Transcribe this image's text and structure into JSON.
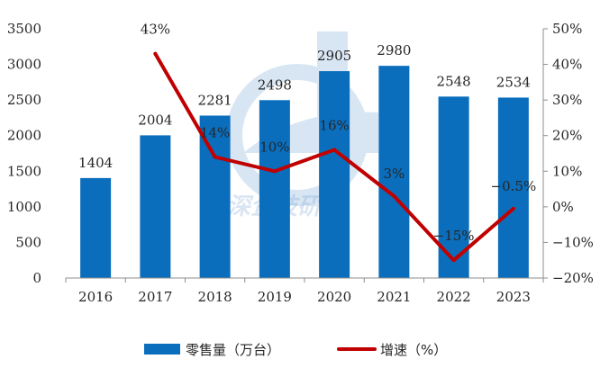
{
  "chart_data": {
    "type": "bar+line",
    "categories": [
      "2016",
      "2017",
      "2018",
      "2019",
      "2020",
      "2021",
      "2022",
      "2023"
    ],
    "series": [
      {
        "name": "零售量（万台）",
        "type": "bar",
        "axis": "left",
        "color": "#0a6ebd",
        "values": [
          1404,
          2004,
          2281,
          2498,
          2905,
          2980,
          2548,
          2534
        ],
        "labels": [
          "1404",
          "2004",
          "2281",
          "2498",
          "2905",
          "2980",
          "2548",
          "2534"
        ]
      },
      {
        "name": "增速（%）",
        "type": "line",
        "axis": "right",
        "color": "#c00000",
        "values": [
          null,
          43,
          14,
          10,
          16,
          3,
          -15,
          -0.5
        ],
        "labels": [
          "",
          "43%",
          "14%",
          "10%",
          "16%",
          "3%",
          "−15%",
          "−0.5%"
        ]
      }
    ],
    "y_left": {
      "min": 0,
      "max": 3500,
      "step": 500,
      "ticks": [
        "0",
        "500",
        "1000",
        "1500",
        "2000",
        "2500",
        "3000",
        "3500"
      ]
    },
    "y_right": {
      "min": -20,
      "max": 50,
      "step": 10,
      "ticks": [
        "−20%",
        "−10%",
        "0%",
        "10%",
        "20%",
        "30%",
        "40%",
        "50%"
      ]
    },
    "grid": false,
    "legend": "bottom",
    "title": "",
    "xlabel": "",
    "ylabel": ""
  },
  "watermark": {
    "text": "深企技研究",
    "color": "#5b8ec9"
  }
}
